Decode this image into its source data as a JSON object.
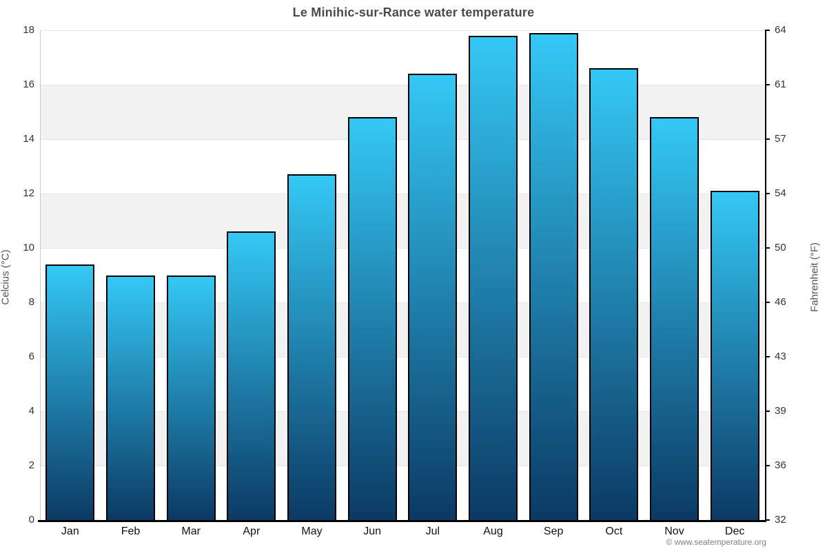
{
  "title": "Le Minihic-sur-Rance water temperature",
  "footer": {
    "copyright": "© www.seatemperature.org"
  },
  "chart_data": {
    "type": "bar",
    "title": "Le Minihic-sur-Rance water temperature",
    "categories": [
      "Jan",
      "Feb",
      "Mar",
      "Apr",
      "May",
      "Jun",
      "Jul",
      "Aug",
      "Sep",
      "Oct",
      "Nov",
      "Dec"
    ],
    "values": [
      9.4,
      9.0,
      9.0,
      10.6,
      12.7,
      14.8,
      16.4,
      17.8,
      17.9,
      16.6,
      14.8,
      12.1
    ],
    "xlabel": "",
    "ylabel_left": "Celcius (°C)",
    "ylabel_right": "Fahrenheit (°F)",
    "ylim": [
      0,
      18
    ],
    "ytick_step": 2,
    "yticks_left": [
      0,
      2,
      4,
      6,
      8,
      10,
      12,
      14,
      16,
      18
    ],
    "yticks_right": [
      32,
      36,
      39,
      43,
      46,
      50,
      54,
      57,
      61,
      64
    ],
    "grid": "alternating-horizontal-bands",
    "legend": "none",
    "colors": {
      "bar_top": "#35c8f5",
      "bar_bottom": "#0b3a64",
      "bar_border": "#000000",
      "band_gray": "#f2f2f2",
      "gridline": "#e6e6e6",
      "title_text": "#4a4a4a",
      "tick_text": "#333333",
      "axis_label_text": "#555555",
      "footer_text": "#808080"
    }
  }
}
